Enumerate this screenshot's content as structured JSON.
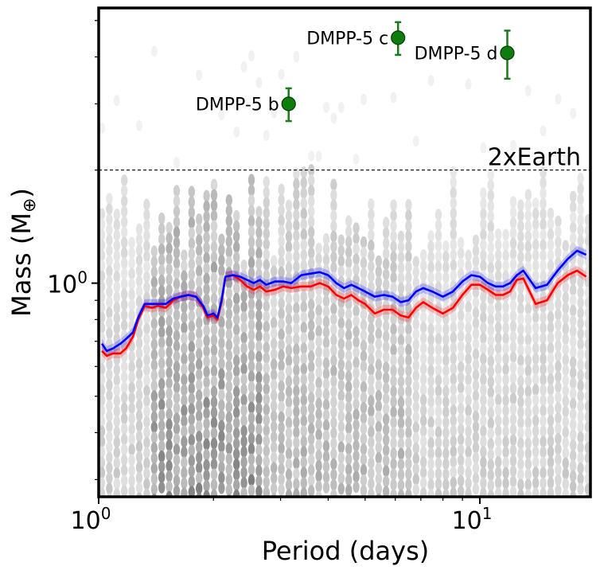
{
  "chart_data": {
    "type": "scatter",
    "xlabel": "Period (days)",
    "ylabel_main": "Mass (M",
    "ylabel_symbol": "⊕",
    "ylabel_end": ")",
    "xscale": "log",
    "yscale": "log",
    "xlim": [
      1.0,
      19.5
    ],
    "ylim": [
      0.27,
      5.4
    ],
    "x_tick_labels": [
      {
        "value": 1,
        "base": "10",
        "exp": "0"
      },
      {
        "value": 10,
        "base": "10",
        "exp": "1"
      }
    ],
    "y_tick_labels": [
      {
        "value": 1,
        "base": "10",
        "exp": "0"
      }
    ],
    "reference_line": {
      "value": 2.0,
      "label": "2xEarth",
      "style": "dashed"
    },
    "planets": [
      {
        "name": "DMPP-5 b",
        "period": 3.15,
        "mass": 3.0,
        "err_lo": 0.3,
        "err_hi": 0.3
      },
      {
        "name": "DMPP-5 c",
        "period": 6.1,
        "mass": 4.5,
        "err_lo": 0.45,
        "err_hi": 0.45
      },
      {
        "name": "DMPP-5 d",
        "period": 11.8,
        "mass": 4.1,
        "err_lo": 0.6,
        "err_hi": 0.6
      }
    ],
    "series": [
      {
        "name": "red threshold",
        "color": "#ff0000",
        "x": [
          1.02,
          1.05,
          1.09,
          1.14,
          1.18,
          1.23,
          1.27,
          1.32,
          1.38,
          1.43,
          1.5,
          1.57,
          1.64,
          1.72,
          1.8,
          1.88,
          1.93,
          2.0,
          2.05,
          2.1,
          2.15,
          2.25,
          2.35,
          2.45,
          2.55,
          2.65,
          2.75,
          2.9,
          3.05,
          3.2,
          3.4,
          3.6,
          3.8,
          4.0,
          4.2,
          4.4,
          4.6,
          4.8,
          5.0,
          5.3,
          5.6,
          5.9,
          6.2,
          6.5,
          6.8,
          7.1,
          7.5,
          8.0,
          8.5,
          9.0,
          9.5,
          10.0,
          10.5,
          11.0,
          11.5,
          12.0,
          12.5,
          13.0,
          14.0,
          15.0,
          16.0,
          17.0,
          18.0,
          19.0
        ],
        "values": [
          0.66,
          0.64,
          0.65,
          0.65,
          0.67,
          0.72,
          0.8,
          0.87,
          0.86,
          0.87,
          0.86,
          0.9,
          0.92,
          0.93,
          0.92,
          0.86,
          0.81,
          0.82,
          0.8,
          0.89,
          1.04,
          1.05,
          1.02,
          0.98,
          0.96,
          0.98,
          0.95,
          0.96,
          0.98,
          0.97,
          0.98,
          0.98,
          1.0,
          0.98,
          0.93,
          0.91,
          0.93,
          0.9,
          0.88,
          0.83,
          0.85,
          0.85,
          0.82,
          0.81,
          0.86,
          0.89,
          0.86,
          0.83,
          0.86,
          0.93,
          0.99,
          0.99,
          0.96,
          0.93,
          0.93,
          0.95,
          1.02,
          1.03,
          0.88,
          0.9,
          1.0,
          1.05,
          1.08,
          1.04
        ]
      },
      {
        "name": "blue threshold",
        "color": "#0000ff",
        "x": [
          1.02,
          1.05,
          1.09,
          1.14,
          1.18,
          1.23,
          1.27,
          1.32,
          1.38,
          1.43,
          1.5,
          1.57,
          1.64,
          1.72,
          1.8,
          1.88,
          1.93,
          2.0,
          2.05,
          2.1,
          2.15,
          2.25,
          2.35,
          2.45,
          2.55,
          2.65,
          2.75,
          2.9,
          3.05,
          3.2,
          3.4,
          3.6,
          3.8,
          4.0,
          4.2,
          4.4,
          4.6,
          4.8,
          5.0,
          5.3,
          5.6,
          5.9,
          6.2,
          6.5,
          6.8,
          7.1,
          7.5,
          8.0,
          8.5,
          9.0,
          9.5,
          10.0,
          10.5,
          11.0,
          11.5,
          12.0,
          12.5,
          13.0,
          14.0,
          15.0,
          16.0,
          17.0,
          18.0,
          19.0
        ],
        "values": [
          0.69,
          0.66,
          0.67,
          0.69,
          0.71,
          0.74,
          0.81,
          0.88,
          0.88,
          0.88,
          0.88,
          0.91,
          0.92,
          0.93,
          0.92,
          0.87,
          0.82,
          0.83,
          0.81,
          0.9,
          1.04,
          1.05,
          1.04,
          1.02,
          1.0,
          1.02,
          0.99,
          1.01,
          1.01,
          1.0,
          1.05,
          1.06,
          1.07,
          1.05,
          1.0,
          0.97,
          0.99,
          0.97,
          0.95,
          0.92,
          0.93,
          0.92,
          0.89,
          0.9,
          0.95,
          0.97,
          0.95,
          0.92,
          0.95,
          1.01,
          1.05,
          1.04,
          1.0,
          0.98,
          0.98,
          1.0,
          1.05,
          1.08,
          0.97,
          0.99,
          1.08,
          1.16,
          1.22,
          1.19
        ]
      }
    ]
  }
}
